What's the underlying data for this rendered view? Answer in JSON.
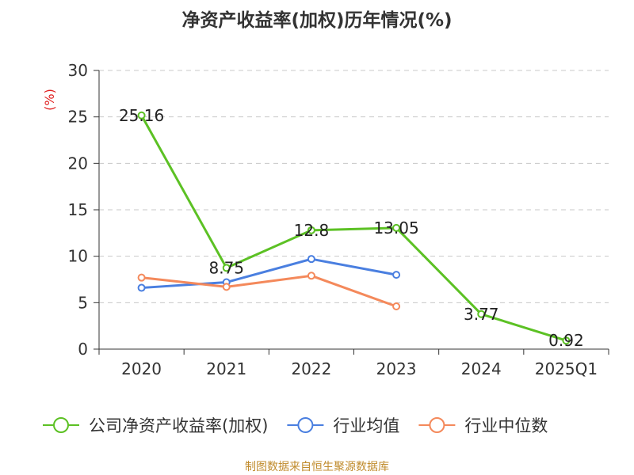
{
  "chart_data": {
    "type": "line",
    "title": "净资产收益率(加权)历年情况(%)",
    "ylabel": "(%)",
    "xlabel": "",
    "categories": [
      "2020",
      "2021",
      "2022",
      "2023",
      "2024",
      "2025Q1"
    ],
    "ylim": [
      0,
      30
    ],
    "yticks": [
      0,
      5,
      10,
      15,
      20,
      25,
      30
    ],
    "grid": true,
    "legend_position": "bottom",
    "series": [
      {
        "name": "公司净资产收益率(加权)",
        "color": "#5cc124",
        "values": [
          25.16,
          8.75,
          12.8,
          13.05,
          3.77,
          0.92
        ],
        "labels": [
          "25.16",
          "8.75",
          "12.8",
          "13.05",
          "3.77",
          "0.92"
        ]
      },
      {
        "name": "行业均值",
        "color": "#4a7fe0",
        "values": [
          6.6,
          7.2,
          9.7,
          8.0,
          null,
          null
        ]
      },
      {
        "name": "行业中位数",
        "color": "#f4895b",
        "values": [
          7.7,
          6.7,
          7.9,
          4.6,
          null,
          null
        ]
      }
    ]
  },
  "footer": {
    "source": "制图数据来自恒生聚源数据库"
  }
}
